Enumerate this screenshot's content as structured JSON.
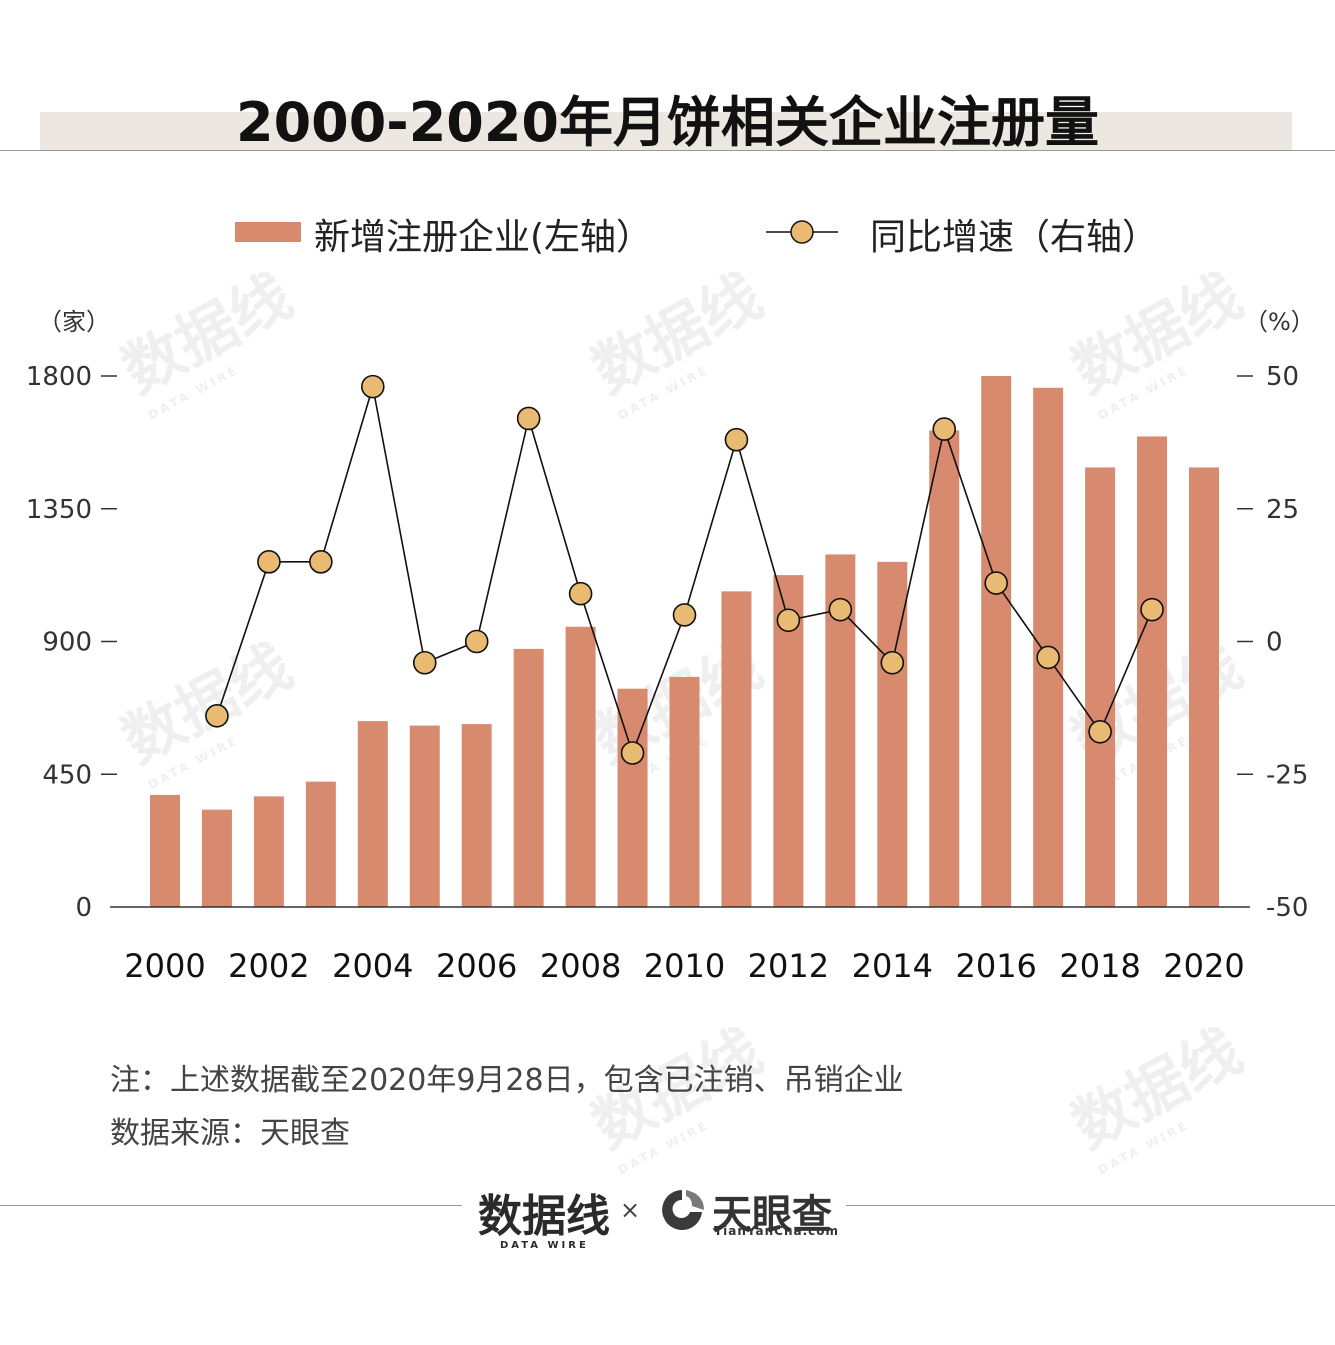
{
  "title": "2000-2020年月饼相关企业注册量",
  "legend": {
    "bars": "新增注册企业(左轴）",
    "line": "同比增速（右轴）"
  },
  "units": {
    "left": "（家）",
    "right": "（%）"
  },
  "notes": {
    "line1": "注：上述数据截至2020年9月28日，包含已注销、吊销企业",
    "line2": "数据来源：天眼查"
  },
  "footer": {
    "logo_a": "数据线",
    "logo_a_sub": "DATA WIRE",
    "times": "×",
    "logo_b": "天眼查",
    "logo_b_sub": "TianYanCha.com"
  },
  "watermark": {
    "text": "数据线",
    "sub": "DATA WIRE"
  },
  "colors": {
    "bar": "#d88a6e",
    "dot": "#e8ba72",
    "line": "#111111",
    "axis": "#333333"
  },
  "chart_data": {
    "type": "bar+line",
    "x": [
      2000,
      2001,
      2002,
      2003,
      2004,
      2005,
      2006,
      2007,
      2008,
      2009,
      2010,
      2011,
      2012,
      2013,
      2014,
      2015,
      2016,
      2017,
      2018,
      2019,
      2020
    ],
    "x_tick_labels": [
      "2000",
      "2002",
      "2004",
      "2006",
      "2008",
      "2010",
      "2012",
      "2014",
      "2016",
      "2018",
      "2020"
    ],
    "series": [
      {
        "name": "新增注册企业(左轴）",
        "type": "bar",
        "axis": "left",
        "values": [
          380,
          330,
          375,
          425,
          630,
          615,
          620,
          875,
          950,
          740,
          780,
          1070,
          1125,
          1195,
          1170,
          1615,
          1800,
          1760,
          1490,
          1595,
          1490
        ]
      },
      {
        "name": "同比增速（右轴）",
        "type": "line",
        "axis": "right",
        "values": [
          null,
          -14,
          15,
          15,
          48,
          -4,
          0,
          42,
          9,
          -21,
          5,
          38,
          4,
          6,
          -4,
          40,
          11,
          -3,
          -17,
          6,
          null
        ]
      }
    ],
    "left_axis": {
      "range": [
        0,
        1800
      ],
      "ticks": [
        0,
        450,
        900,
        1350,
        1800
      ],
      "unit": "（家）"
    },
    "right_axis": {
      "range": [
        -50,
        50
      ],
      "ticks": [
        -50,
        -25,
        0,
        25,
        50
      ],
      "unit": "（%）"
    }
  }
}
